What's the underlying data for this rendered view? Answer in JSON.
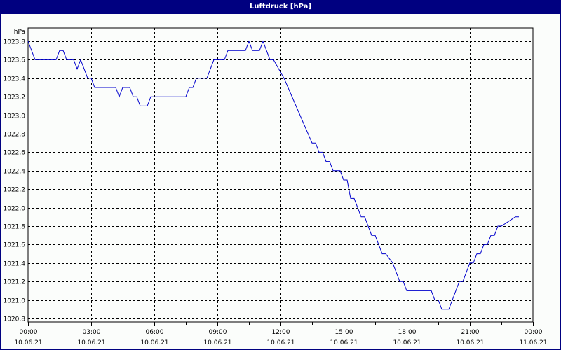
{
  "window": {
    "title": "Luftdruck [hPa]"
  },
  "chart_data": {
    "type": "line",
    "title": "Luftdruck [hPa]",
    "xlabel": "",
    "ylabel": "hPa",
    "ylim": [
      1020.8,
      1023.8
    ],
    "grid": true,
    "legend": null,
    "y_ticks": [
      "1023,8",
      "1023,6",
      "1023,4",
      "1023,2",
      "1023,0",
      "1022,8",
      "1022,6",
      "1022,4",
      "1022,2",
      "1022,0",
      "1021,8",
      "1021,6",
      "1021,4",
      "1021,2",
      "1021,0",
      "1020,8"
    ],
    "x_ticks": [
      {
        "time": "00:00",
        "date": "10.06.21"
      },
      {
        "time": "03:00",
        "date": "10.06.21"
      },
      {
        "time": "06:00",
        "date": "10.06.21"
      },
      {
        "time": "09:00",
        "date": "10.06.21"
      },
      {
        "time": "12:00",
        "date": "10.06.21"
      },
      {
        "time": "15:00",
        "date": "10.06.21"
      },
      {
        "time": "18:00",
        "date": "10.06.21"
      },
      {
        "time": "21:00",
        "date": "10.06.21"
      },
      {
        "time": "00:00",
        "date": "11.06.21"
      }
    ],
    "series": [
      {
        "name": "Luftdruck",
        "color": "#0000cc",
        "x_minutes": [
          0,
          20,
          80,
          90,
          100,
          110,
          130,
          140,
          150,
          160,
          170,
          180,
          190,
          250,
          260,
          270,
          290,
          300,
          310,
          320,
          340,
          350,
          450,
          460,
          470,
          480,
          510,
          530,
          560,
          570,
          620,
          630,
          640,
          660,
          670,
          680,
          690,
          700,
          730,
          810,
          820,
          830,
          840,
          850,
          860,
          870,
          890,
          900,
          910,
          920,
          930,
          940,
          950,
          960,
          980,
          990,
          1000,
          1010,
          1020,
          1040,
          1060,
          1070,
          1080,
          1150,
          1160,
          1170,
          1180,
          1200,
          1220,
          1230,
          1240,
          1250,
          1260,
          1270,
          1280,
          1290,
          1300,
          1310,
          1320,
          1330,
          1340,
          1350,
          1390,
          1400
        ],
        "values": [
          1023.8,
          1023.6,
          1023.6,
          1023.7,
          1023.7,
          1023.6,
          1023.6,
          1023.5,
          1023.6,
          1023.5,
          1023.4,
          1023.4,
          1023.3,
          1023.3,
          1023.2,
          1023.3,
          1023.3,
          1023.2,
          1023.2,
          1023.1,
          1023.1,
          1023.2,
          1023.2,
          1023.3,
          1023.3,
          1023.4,
          1023.4,
          1023.6,
          1023.6,
          1023.7,
          1023.7,
          1023.8,
          1023.7,
          1023.7,
          1023.8,
          1023.7,
          1023.6,
          1023.6,
          1023.4,
          1022.7,
          1022.7,
          1022.6,
          1022.6,
          1022.5,
          1022.5,
          1022.4,
          1022.4,
          1022.3,
          1022.3,
          1022.1,
          1022.1,
          1022.0,
          1021.9,
          1021.9,
          1021.7,
          1021.7,
          1021.6,
          1021.5,
          1021.5,
          1021.4,
          1021.2,
          1021.2,
          1021.1,
          1021.1,
          1021.0,
          1021.0,
          1020.9,
          1020.9,
          1021.1,
          1021.2,
          1021.2,
          1021.3,
          1021.4,
          1021.4,
          1021.5,
          1021.5,
          1021.6,
          1021.6,
          1021.7,
          1021.7,
          1021.8,
          1021.8,
          1021.9,
          1021.9
        ]
      }
    ]
  }
}
